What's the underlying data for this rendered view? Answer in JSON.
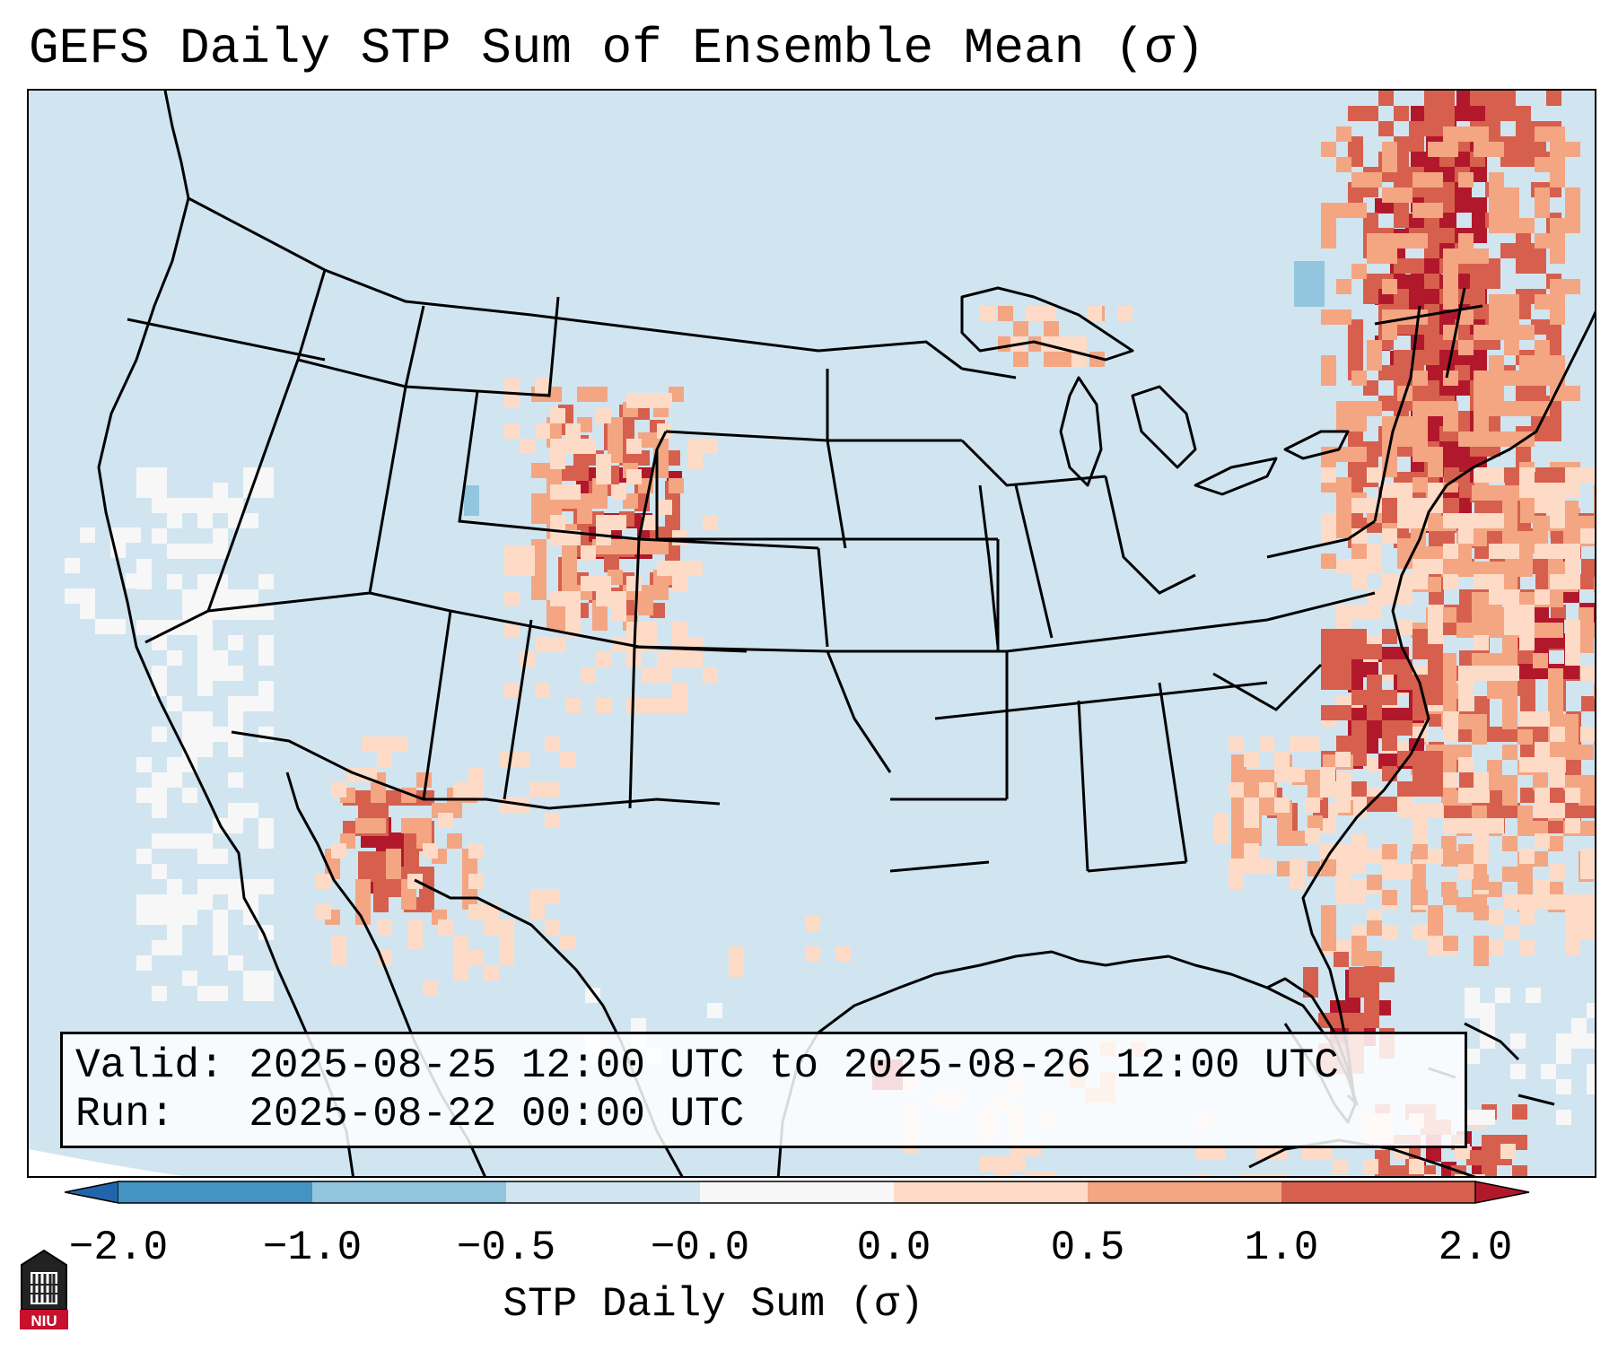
{
  "title": "GEFS Daily STP Sum of Ensemble Mean (σ)",
  "info": {
    "valid_label": "Valid:",
    "valid_value": "2025-08-25 12:00 UTC to 2025-08-26 12:00 UTC",
    "run_label": "Run:",
    "run_value": "2025-08-22 00:00 UTC"
  },
  "colorbar": {
    "label": "STP Daily Sum (σ)",
    "ticks": [
      "−2.0",
      "−1.0",
      "−0.5",
      "−0.0",
      "0.0",
      "0.5",
      "1.0",
      "2.0"
    ],
    "bins": [
      {
        "range": "<-2.0",
        "color": "#2166ac"
      },
      {
        "range": "-2.0 to -1.0",
        "color": "#4393c3"
      },
      {
        "range": "-1.0 to -0.5",
        "color": "#92c5de"
      },
      {
        "range": "-0.5 to -0.0",
        "color": "#d1e5f0"
      },
      {
        "range": "-0.0 to 0.0",
        "color": "#f7f7f7"
      },
      {
        "range": "0.0 to 0.5",
        "color": "#fddbc7"
      },
      {
        "range": "0.5 to 1.0",
        "color": "#f4a582"
      },
      {
        "range": "1.0 to 2.0",
        "color": "#d6604d"
      },
      {
        "range": ">2.0",
        "color": "#b2182b"
      }
    ]
  },
  "map": {
    "region": "Continental United States",
    "background_color": "#d1e5f0",
    "dominant_bin": "-0.5 to -0.0",
    "anomaly_regions": [
      {
        "area": "Northeast US / New England",
        "bin": ">2.0"
      },
      {
        "area": "Atlantic offshore",
        "bin": "1.0 to 2.0"
      },
      {
        "area": "Eastern North Carolina",
        "bin": ">2.0"
      },
      {
        "area": "Wyoming / Colorado Front Range",
        "bin": ">2.0"
      },
      {
        "area": "Southern Arizona",
        "bin": ">2.0"
      },
      {
        "area": "South Carolina",
        "bin": "1.0 to 2.0"
      },
      {
        "area": "Pacific offshore California",
        "bin": "-0.0 to 0.0"
      }
    ]
  },
  "logo": {
    "text": "NIU"
  }
}
